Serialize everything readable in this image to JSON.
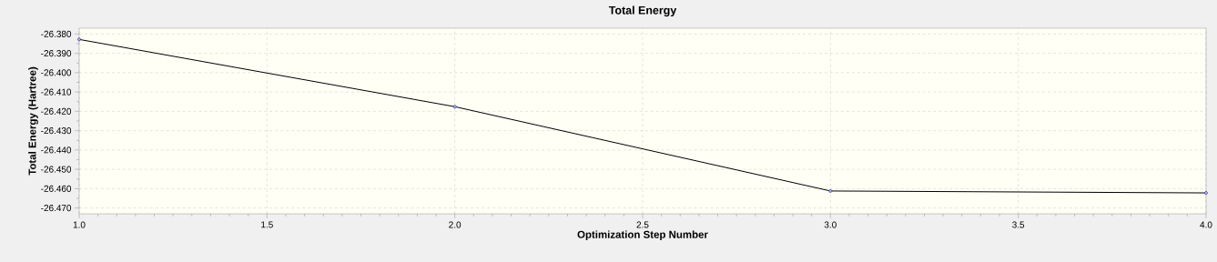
{
  "chart_data": {
    "type": "line",
    "title": "Total Energy",
    "xlabel": "Optimization Step Number",
    "ylabel": "Total Energy (Hartree)",
    "x": [
      1,
      2,
      3,
      4
    ],
    "series": [
      {
        "color": "#000000",
        "values": [
          -26.3828,
          -26.4176,
          -26.4612,
          -26.4622
        ]
      }
    ],
    "marker": "circle",
    "line_style": "solid",
    "grid": true,
    "xlim": [
      1.0,
      4.0
    ],
    "xticks": [
      {
        "value": 1.0,
        "label": "1.0"
      },
      {
        "value": 1.5,
        "label": "1.5"
      },
      {
        "value": 2.0,
        "label": "2.0"
      },
      {
        "value": 2.5,
        "label": "2.5"
      },
      {
        "value": 3.0,
        "label": "3.0"
      },
      {
        "value": 3.5,
        "label": "3.5"
      },
      {
        "value": 4.0,
        "label": "4.0"
      }
    ],
    "ylim": [
      -26.473,
      -26.377
    ],
    "yticks": [
      {
        "value": -26.38,
        "label": "-26.380"
      },
      {
        "value": -26.39,
        "label": "-26.390"
      },
      {
        "value": -26.4,
        "label": "-26.400"
      },
      {
        "value": -26.41,
        "label": "-26.410"
      },
      {
        "value": -26.42,
        "label": "-26.420"
      },
      {
        "value": -26.43,
        "label": "-26.430"
      },
      {
        "value": -26.44,
        "label": "-26.440"
      },
      {
        "value": -26.45,
        "label": "-26.450"
      },
      {
        "value": -26.46,
        "label": "-26.460"
      },
      {
        "value": -26.47,
        "label": "-26.470"
      }
    ]
  }
}
